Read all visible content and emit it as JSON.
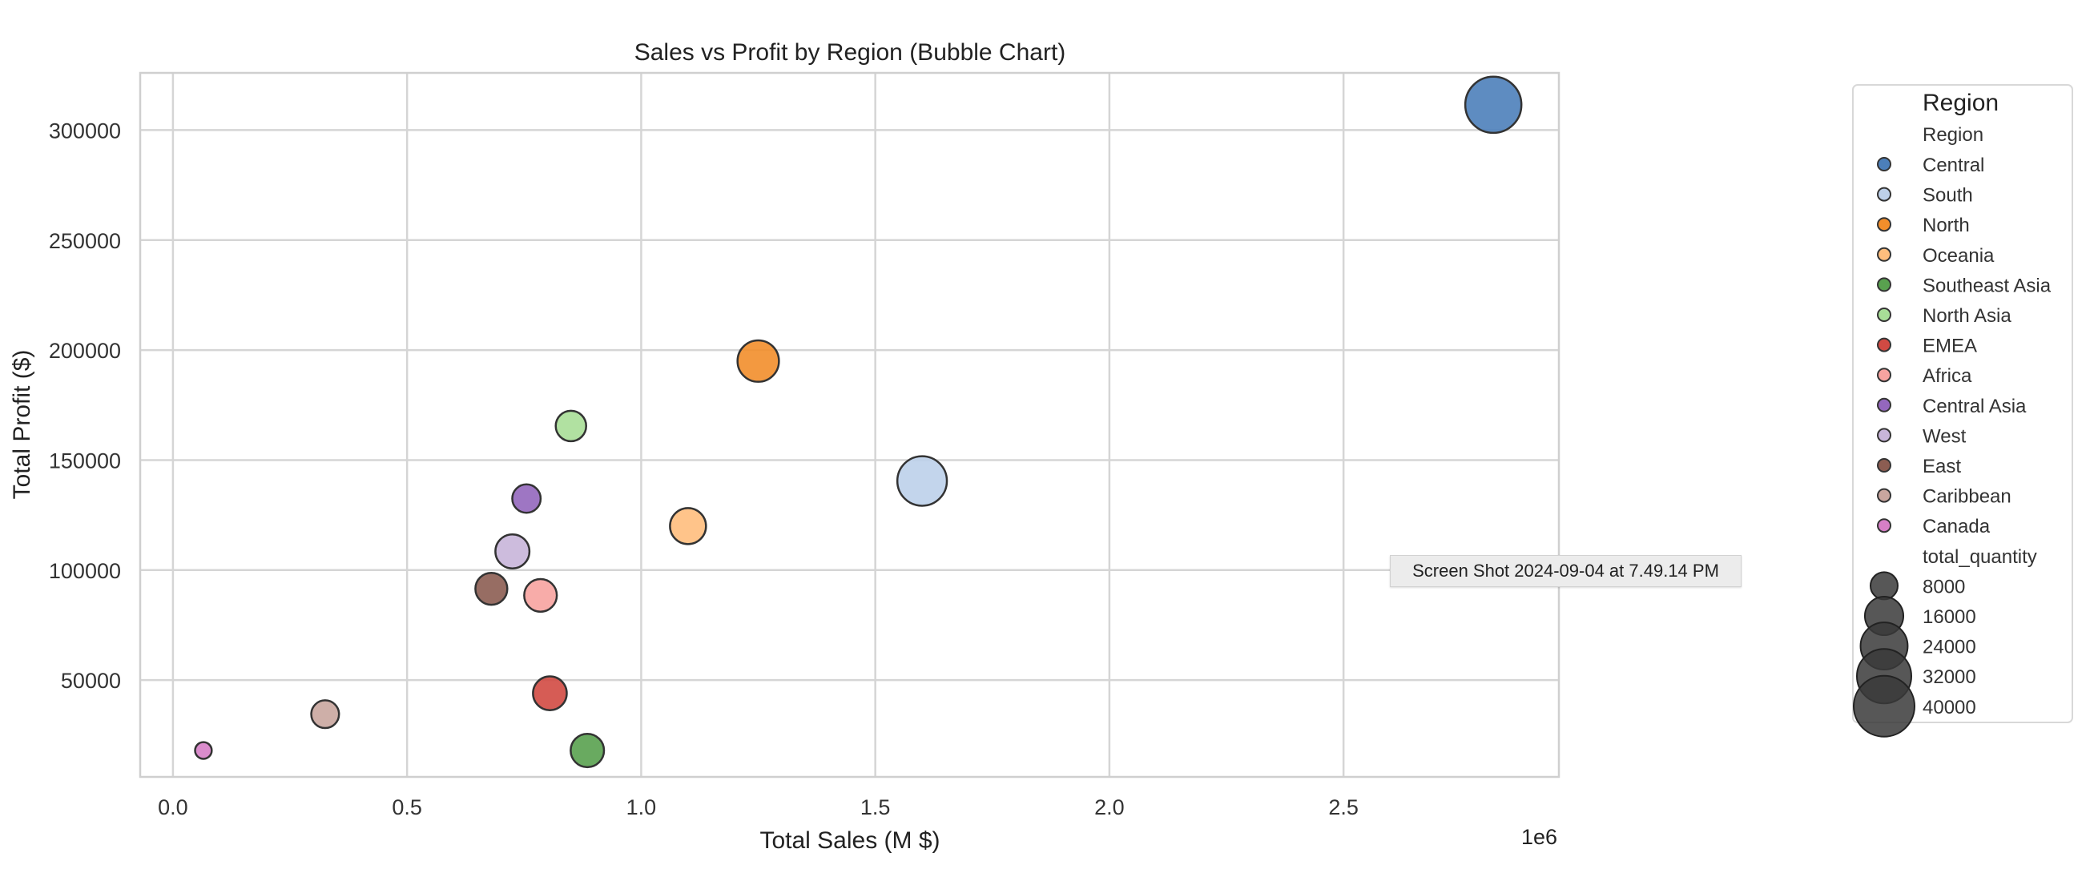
{
  "chart_data": {
    "type": "scatter",
    "title": "Sales vs Profit by Region (Bubble Chart)",
    "xlabel": "Total Sales (M $)",
    "ylabel": "Total Profit ($)",
    "x_offset_label": "1e6",
    "xlim": [
      -0.07,
      2.96
    ],
    "ylim": [
      6000,
      326000
    ],
    "x_ticks": [
      0.0,
      0.5,
      1.0,
      1.5,
      2.0,
      2.5
    ],
    "x_tick_labels": [
      "0.0",
      "0.5",
      "1.0",
      "1.5",
      "2.0",
      "2.5"
    ],
    "y_ticks": [
      50000,
      100000,
      150000,
      200000,
      250000,
      300000
    ],
    "y_tick_labels": [
      "50000",
      "100000",
      "150000",
      "200000",
      "250000",
      "300000"
    ],
    "grid": true,
    "legend_position": "outside-right",
    "legend": {
      "hue_title": "Region",
      "hue_subtitle": "Region",
      "size_title": "total_quantity",
      "size_values": [
        8000,
        16000,
        24000,
        32000,
        40000
      ],
      "size_labels": [
        "8000",
        "16000",
        "24000",
        "32000",
        "40000"
      ]
    },
    "series": [
      {
        "name": "Central",
        "x": 2.82,
        "y": 311500,
        "size": 34000,
        "color": "#4c7fba"
      },
      {
        "name": "South",
        "x": 1.6,
        "y": 140500,
        "size": 26500,
        "color": "#bdd0ea"
      },
      {
        "name": "North",
        "x": 1.25,
        "y": 195000,
        "size": 18500,
        "color": "#f28e2b"
      },
      {
        "name": "Oceania",
        "x": 1.1,
        "y": 120000,
        "size": 14000,
        "color": "#ffbe7d"
      },
      {
        "name": "Southeast Asia",
        "x": 0.885,
        "y": 18000,
        "size": 12000,
        "color": "#59a14f"
      },
      {
        "name": "North Asia",
        "x": 0.85,
        "y": 165500,
        "size": 10000,
        "color": "#a8de97"
      },
      {
        "name": "EMEA",
        "x": 0.805,
        "y": 44000,
        "size": 12300,
        "color": "#d14a43"
      },
      {
        "name": "Africa",
        "x": 0.785,
        "y": 88500,
        "size": 11500,
        "color": "#f7a3a0"
      },
      {
        "name": "Central Asia",
        "x": 0.755,
        "y": 132500,
        "size": 8700,
        "color": "#9467bd"
      },
      {
        "name": "West",
        "x": 0.725,
        "y": 108500,
        "size": 12500,
        "color": "#c8b5d9"
      },
      {
        "name": "East",
        "x": 0.68,
        "y": 91500,
        "size": 11000,
        "color": "#8c5d52"
      },
      {
        "name": "Caribbean",
        "x": 0.325,
        "y": 34500,
        "size": 8300,
        "color": "#c9a69f"
      },
      {
        "name": "Canada",
        "x": 0.065,
        "y": 18000,
        "size": 3000,
        "color": "#d67fc6"
      }
    ]
  },
  "overlay": {
    "tooltip_text": "Screen Shot 2024-09-04 at 7.49.14 PM"
  }
}
